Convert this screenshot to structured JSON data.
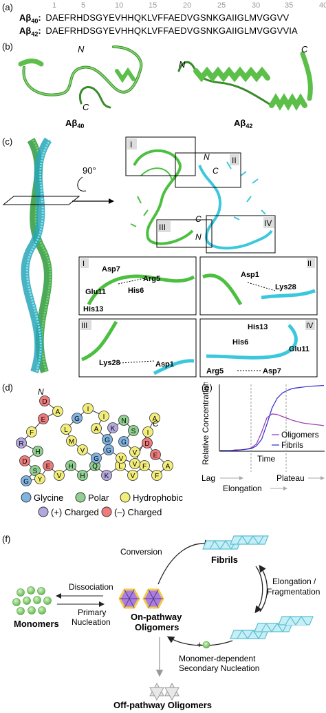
{
  "panel_a": {
    "label": "(a)",
    "ruler": [
      "1",
      "5",
      "10",
      "15",
      "20",
      "25",
      "30",
      "35",
      "40"
    ],
    "rows": [
      {
        "name_base": "Aβ",
        "name_sub": "40",
        "suffix": ":",
        "sequence": "DAEFRHDSGYEVHHQKLVFFAEDVGSNKGAIIGLMVGGVV"
      },
      {
        "name_base": "Aβ",
        "name_sub": "42",
        "suffix": ":",
        "sequence": "DAEFRHDSGYEVHHQKLVFFAEDVGSNKGAIIGLMVGGVVIA"
      }
    ]
  },
  "panel_b": {
    "label": "(b)",
    "left": {
      "N": "N",
      "C": "C",
      "title_base": "Aβ",
      "title_sub": "40"
    },
    "right": {
      "N": "N",
      "C": "C",
      "title_base": "Aβ",
      "title_sub": "42"
    }
  },
  "panel_c": {
    "label": "(c)",
    "rotation": "90°",
    "box_labels": [
      "I",
      "II",
      "III",
      "IV"
    ],
    "termini": {
      "N1": "N",
      "C1": "C",
      "C2": "C",
      "N2": "N"
    },
    "zooms": [
      {
        "num": "I",
        "residues": [
          "Asp7",
          "Arg5",
          "Glu11",
          "His6",
          "His13"
        ]
      },
      {
        "num": "II",
        "residues": [
          "Asp1",
          "Lys28"
        ]
      },
      {
        "num": "III",
        "residues": [
          "Lys28",
          "Asp1"
        ]
      },
      {
        "num": "IV",
        "residues": [
          "His13",
          "His6",
          "Glu11",
          "Arg5",
          "Asp7"
        ]
      }
    ]
  },
  "panel_d": {
    "label": "(d)",
    "N": "N",
    "C": "C",
    "legend": [
      {
        "text": "Glycine",
        "color": "#7fb3e0"
      },
      {
        "text": "Polar",
        "color": "#8fcf8f"
      },
      {
        "text": "Hydrophobic",
        "color": "#f3ee7a"
      },
      {
        "text": "(+) Charged",
        "color": "#b3a8dd"
      },
      {
        "text": "(–) Charged",
        "color": "#ef7b7b"
      }
    ],
    "residues": [
      {
        "t": "D",
        "c": "neg"
      },
      {
        "t": "A",
        "c": "hyd"
      },
      {
        "t": "E",
        "c": "neg"
      },
      {
        "t": "F",
        "c": "hyd"
      },
      {
        "t": "R",
        "c": "pos"
      },
      {
        "t": "H",
        "c": "pol"
      },
      {
        "t": "D",
        "c": "neg"
      },
      {
        "t": "S",
        "c": "pol"
      },
      {
        "t": "G",
        "c": "gly"
      },
      {
        "t": "Y",
        "c": "hyd"
      },
      {
        "t": "E",
        "c": "neg"
      },
      {
        "t": "V",
        "c": "hyd"
      },
      {
        "t": "H",
        "c": "pol"
      },
      {
        "t": "H",
        "c": "pol"
      },
      {
        "t": "Q",
        "c": "pol"
      },
      {
        "t": "K",
        "c": "pos"
      },
      {
        "t": "L",
        "c": "hyd"
      },
      {
        "t": "V",
        "c": "hyd"
      },
      {
        "t": "F",
        "c": "hyd"
      },
      {
        "t": "F",
        "c": "hyd"
      },
      {
        "t": "A",
        "c": "hyd"
      },
      {
        "t": "E",
        "c": "neg"
      },
      {
        "t": "D",
        "c": "neg"
      },
      {
        "t": "V",
        "c": "hyd"
      },
      {
        "t": "G",
        "c": "gly"
      },
      {
        "t": "S",
        "c": "pol"
      },
      {
        "t": "N",
        "c": "pol"
      },
      {
        "t": "K",
        "c": "pos"
      },
      {
        "t": "G",
        "c": "gly"
      },
      {
        "t": "A",
        "c": "hyd"
      },
      {
        "t": "I",
        "c": "hyd"
      },
      {
        "t": "I",
        "c": "hyd"
      },
      {
        "t": "G",
        "c": "gly"
      },
      {
        "t": "L",
        "c": "hyd"
      },
      {
        "t": "M",
        "c": "hyd"
      },
      {
        "t": "V",
        "c": "hyd"
      },
      {
        "t": "G",
        "c": "gly"
      },
      {
        "t": "G",
        "c": "gly"
      },
      {
        "t": "V",
        "c": "hyd"
      },
      {
        "t": "V",
        "c": "hyd"
      },
      {
        "t": "I",
        "c": "hyd"
      },
      {
        "t": "A",
        "c": "hyd"
      }
    ]
  },
  "panel_e": {
    "label": "(e)",
    "ylabel": "Relative Concentration",
    "xlabel": "Time",
    "phases": [
      "Lag",
      "Elongation",
      "Plateau"
    ],
    "colors": {
      "oligomers": "#a040b0",
      "fibrils": "#3a3ad0"
    }
  },
  "chart_data": {
    "type": "line",
    "title": "",
    "xlabel": "Time",
    "ylabel": "Relative Concentration",
    "x": [
      0,
      0.05,
      0.1,
      0.15,
      0.2,
      0.25,
      0.3,
      0.35,
      0.4,
      0.45,
      0.5,
      0.55,
      0.6,
      0.65,
      0.7,
      0.75,
      0.8,
      0.85,
      0.9,
      0.95,
      1.0
    ],
    "series": [
      {
        "name": "Oligomers",
        "values": [
          0.0,
          0.0,
          0.0,
          0.01,
          0.01,
          0.02,
          0.04,
          0.1,
          0.28,
          0.5,
          0.56,
          0.55,
          0.52,
          0.49,
          0.46,
          0.44,
          0.42,
          0.41,
          0.4,
          0.39,
          0.38
        ]
      },
      {
        "name": "Fibrils",
        "values": [
          0.0,
          0.0,
          0.0,
          0.0,
          0.01,
          0.02,
          0.03,
          0.07,
          0.17,
          0.4,
          0.65,
          0.8,
          0.88,
          0.92,
          0.95,
          0.96,
          0.97,
          0.98,
          0.985,
          0.99,
          0.995
        ]
      }
    ],
    "grid": false,
    "legend": "bottom-right"
  },
  "panel_f": {
    "label": "(f)",
    "monomers": "Monomers",
    "dissociation": "Dissociation",
    "primary1": "Primary",
    "primary2": "Nucleation",
    "onpath1": "On-pathway",
    "onpath2": "Oligomers",
    "conversion": "Conversion",
    "fibrils": "Fibrils",
    "elong1": "Elongation /",
    "elong2": "Fragmentation",
    "plus": "+",
    "sec1": "Monomer-dependent",
    "sec2": "Secondary Nucleation",
    "offpath": "Off-pathway Oligomers"
  }
}
